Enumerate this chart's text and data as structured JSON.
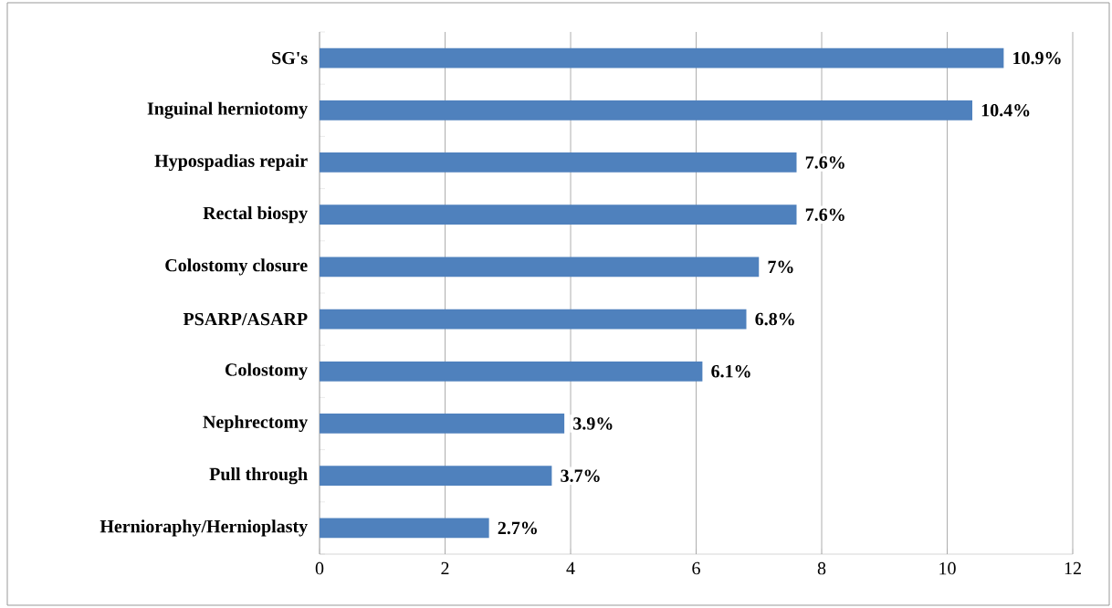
{
  "chart_data": {
    "type": "bar",
    "orientation": "horizontal",
    "categories": [
      "SG's",
      "Inguinal herniotomy",
      "Hypospadias repair",
      "Rectal biospy",
      "Colostomy closure",
      "PSARP/ASARP",
      "Colostomy",
      "Nephrectomy",
      "Pull through",
      "Hernioraphy/Hernioplasty"
    ],
    "values": [
      10.9,
      10.4,
      7.6,
      7.6,
      7.0,
      6.8,
      6.1,
      3.9,
      3.7,
      2.7
    ],
    "value_labels": [
      "10.9%",
      "10.4%",
      "7.6%",
      "7.6%",
      "7%",
      "6.8%",
      "6.1%",
      "3.9%",
      "3.7%",
      "2.7%"
    ],
    "color": "#4f81bd",
    "xlim": [
      0,
      12
    ],
    "xticks": [
      0,
      2,
      4,
      6,
      8,
      10,
      12
    ],
    "grid": "x"
  }
}
